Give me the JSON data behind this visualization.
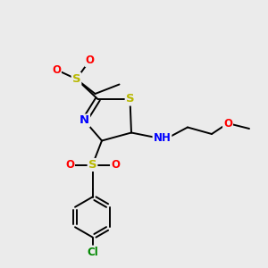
{
  "bg_color": "#ebebeb",
  "atom_colors": {
    "S": "#b8b800",
    "N": "#0000ff",
    "O": "#ff0000",
    "Cl": "#008800",
    "C": "#000000",
    "H": "#444444"
  },
  "bond_color": "#000000",
  "figsize": [
    3.0,
    3.0
  ],
  "dpi": 100,
  "lw": 1.4,
  "fs": 8.5
}
